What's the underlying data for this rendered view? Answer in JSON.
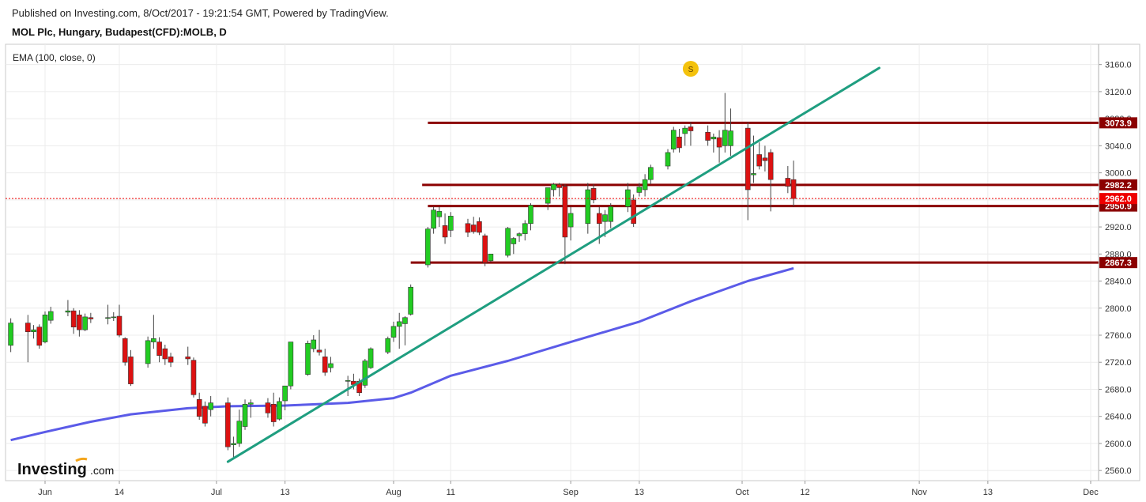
{
  "header": {
    "published": "Published on Investing.com, 8/Oct/2017 - 19:21:54 GMT, Powered by TradingView.",
    "instrument": "MOL Plc, Hungary, Budapest(CFD):MOLB, D"
  },
  "indicator_label": "EMA (100, close, 0)",
  "logo": {
    "main": "Investing",
    "suffix": ".com"
  },
  "event_marker": {
    "label": "S",
    "date": "2017-09-22"
  },
  "colors": {
    "up": "#22cc22",
    "down": "#dd1111",
    "ema": "#5b5be8",
    "trendline": "#1f9e80",
    "level": "#8b0000",
    "price": "#ee0000",
    "grid": "#ececec"
  },
  "chart_data": {
    "type": "candlestick",
    "x_axis": {
      "labels": [
        "Jun",
        "14",
        "Jul",
        "13",
        "Aug",
        "11",
        "Sep",
        "13",
        "Oct",
        "12",
        "Nov",
        "13",
        "Dec"
      ],
      "label_dates": [
        "2017-06-01",
        "2017-06-14",
        "2017-07-01",
        "2017-07-13",
        "2017-08-01",
        "2017-08-11",
        "2017-09-01",
        "2017-09-13",
        "2017-10-01",
        "2017-10-12",
        "2017-11-01",
        "2017-11-13",
        "2017-12-01"
      ]
    },
    "y_axis": {
      "ticks": [
        "3160.0",
        "3120.0",
        "3080.0",
        "3040.0",
        "3000.0",
        "2960.0",
        "2920.0",
        "2880.0",
        "2840.0",
        "2800.0",
        "2760.0",
        "2720.0",
        "2680.0",
        "2640.0",
        "2600.0",
        "2560.0"
      ],
      "range": [
        2545,
        3190
      ]
    },
    "candles": [
      {
        "d": "2017-05-26",
        "o": 2745,
        "h": 2785,
        "l": 2735,
        "c": 2778
      },
      {
        "d": "2017-05-29",
        "o": 2778,
        "h": 2790,
        "l": 2720,
        "c": 2765
      },
      {
        "d": "2017-05-30",
        "o": 2765,
        "h": 2775,
        "l": 2755,
        "c": 2768
      },
      {
        "d": "2017-05-31",
        "o": 2772,
        "h": 2776,
        "l": 2740,
        "c": 2745
      },
      {
        "d": "2017-06-01",
        "o": 2750,
        "h": 2795,
        "l": 2748,
        "c": 2790
      },
      {
        "d": "2017-06-02",
        "o": 2782,
        "h": 2802,
        "l": 2777,
        "c": 2795
      },
      {
        "d": "2017-06-05",
        "o": 2794,
        "h": 2812,
        "l": 2788,
        "c": 2796
      },
      {
        "d": "2017-06-06",
        "o": 2796,
        "h": 2800,
        "l": 2762,
        "c": 2772
      },
      {
        "d": "2017-06-07",
        "o": 2790,
        "h": 2797,
        "l": 2758,
        "c": 2768
      },
      {
        "d": "2017-06-08",
        "o": 2768,
        "h": 2792,
        "l": 2766,
        "c": 2787
      },
      {
        "d": "2017-06-09",
        "o": 2786,
        "h": 2793,
        "l": 2778,
        "c": 2784
      },
      {
        "d": "2017-06-12",
        "o": 2785,
        "h": 2805,
        "l": 2776,
        "c": 2786
      },
      {
        "d": "2017-06-13",
        "o": 2786,
        "h": 2794,
        "l": 2781,
        "c": 2787
      },
      {
        "d": "2017-06-14",
        "o": 2788,
        "h": 2805,
        "l": 2757,
        "c": 2760
      },
      {
        "d": "2017-06-15",
        "o": 2755,
        "h": 2757,
        "l": 2715,
        "c": 2720
      },
      {
        "d": "2017-06-16",
        "o": 2728,
        "h": 2738,
        "l": 2685,
        "c": 2688
      },
      {
        "d": "2017-06-19",
        "o": 2718,
        "h": 2758,
        "l": 2712,
        "c": 2752
      },
      {
        "d": "2017-06-20",
        "o": 2750,
        "h": 2790,
        "l": 2740,
        "c": 2755
      },
      {
        "d": "2017-06-21",
        "o": 2750,
        "h": 2757,
        "l": 2720,
        "c": 2730
      },
      {
        "d": "2017-06-22",
        "o": 2740,
        "h": 2746,
        "l": 2716,
        "c": 2725
      },
      {
        "d": "2017-06-23",
        "o": 2728,
        "h": 2734,
        "l": 2713,
        "c": 2720
      },
      {
        "d": "2017-06-26",
        "o": 2728,
        "h": 2743,
        "l": 2716,
        "c": 2725
      },
      {
        "d": "2017-06-27",
        "o": 2723,
        "h": 2727,
        "l": 2668,
        "c": 2672
      },
      {
        "d": "2017-06-28",
        "o": 2665,
        "h": 2675,
        "l": 2635,
        "c": 2640
      },
      {
        "d": "2017-06-29",
        "o": 2655,
        "h": 2662,
        "l": 2625,
        "c": 2630
      },
      {
        "d": "2017-06-30",
        "o": 2650,
        "h": 2670,
        "l": 2640,
        "c": 2660
      },
      {
        "d": "2017-07-03",
        "o": 2660,
        "h": 2668,
        "l": 2590,
        "c": 2595
      },
      {
        "d": "2017-07-04",
        "o": 2598,
        "h": 2610,
        "l": 2578,
        "c": 2600
      },
      {
        "d": "2017-07-05",
        "o": 2600,
        "h": 2650,
        "l": 2595,
        "c": 2633
      },
      {
        "d": "2017-07-06",
        "o": 2625,
        "h": 2665,
        "l": 2620,
        "c": 2658
      },
      {
        "d": "2017-07-07",
        "o": 2658,
        "h": 2665,
        "l": 2638,
        "c": 2660
      },
      {
        "d": "2017-07-10",
        "o": 2660,
        "h": 2667,
        "l": 2638,
        "c": 2645
      },
      {
        "d": "2017-07-11",
        "o": 2658,
        "h": 2675,
        "l": 2625,
        "c": 2632
      },
      {
        "d": "2017-07-12",
        "o": 2636,
        "h": 2668,
        "l": 2634,
        "c": 2662
      },
      {
        "d": "2017-07-13",
        "o": 2663,
        "h": 2683,
        "l": 2649,
        "c": 2685
      },
      {
        "d": "2017-07-14",
        "o": 2685,
        "h": 2748,
        "l": 2680,
        "c": 2750
      },
      {
        "d": "2017-07-17",
        "o": 2702,
        "h": 2752,
        "l": 2700,
        "c": 2748
      },
      {
        "d": "2017-07-18",
        "o": 2740,
        "h": 2760,
        "l": 2735,
        "c": 2753
      },
      {
        "d": "2017-07-19",
        "o": 2738,
        "h": 2768,
        "l": 2730,
        "c": 2735
      },
      {
        "d": "2017-07-20",
        "o": 2728,
        "h": 2740,
        "l": 2700,
        "c": 2705
      },
      {
        "d": "2017-07-21",
        "o": 2712,
        "h": 2728,
        "l": 2705,
        "c": 2718
      },
      {
        "d": "2017-07-24",
        "o": 2692,
        "h": 2700,
        "l": 2670,
        "c": 2693
      },
      {
        "d": "2017-07-25",
        "o": 2692,
        "h": 2703,
        "l": 2680,
        "c": 2687
      },
      {
        "d": "2017-07-26",
        "o": 2692,
        "h": 2696,
        "l": 2670,
        "c": 2675
      },
      {
        "d": "2017-07-27",
        "o": 2686,
        "h": 2725,
        "l": 2682,
        "c": 2722
      },
      {
        "d": "2017-07-28",
        "o": 2712,
        "h": 2742,
        "l": 2710,
        "c": 2740
      },
      {
        "d": "2017-07-31",
        "o": 2735,
        "h": 2758,
        "l": 2732,
        "c": 2755
      },
      {
        "d": "2017-08-01",
        "o": 2757,
        "h": 2780,
        "l": 2750,
        "c": 2773
      },
      {
        "d": "2017-08-02",
        "o": 2773,
        "h": 2793,
        "l": 2740,
        "c": 2780
      },
      {
        "d": "2017-08-03",
        "o": 2777,
        "h": 2788,
        "l": 2745,
        "c": 2786
      },
      {
        "d": "2017-08-04",
        "o": 2791,
        "h": 2835,
        "l": 2789,
        "c": 2831
      },
      {
        "d": "2017-08-07",
        "o": 2864,
        "h": 2920,
        "l": 2860,
        "c": 2917
      },
      {
        "d": "2017-08-08",
        "o": 2918,
        "h": 2950,
        "l": 2910,
        "c": 2945
      },
      {
        "d": "2017-08-09",
        "o": 2935,
        "h": 2950,
        "l": 2920,
        "c": 2943
      },
      {
        "d": "2017-08-10",
        "o": 2922,
        "h": 2940,
        "l": 2895,
        "c": 2905
      },
      {
        "d": "2017-08-11",
        "o": 2915,
        "h": 2942,
        "l": 2905,
        "c": 2936
      },
      {
        "d": "2017-08-14",
        "o": 2925,
        "h": 2932,
        "l": 2905,
        "c": 2912
      },
      {
        "d": "2017-08-15",
        "o": 2923,
        "h": 2935,
        "l": 2910,
        "c": 2913
      },
      {
        "d": "2017-08-16",
        "o": 2928,
        "h": 2934,
        "l": 2908,
        "c": 2912
      },
      {
        "d": "2017-08-17",
        "o": 2907,
        "h": 2910,
        "l": 2862,
        "c": 2867
      },
      {
        "d": "2017-08-18",
        "o": 2870,
        "h": 2880,
        "l": 2868,
        "c": 2880
      },
      {
        "d": "2017-08-21",
        "o": 2878,
        "h": 2920,
        "l": 2875,
        "c": 2918
      },
      {
        "d": "2017-08-22",
        "o": 2895,
        "h": 2905,
        "l": 2880,
        "c": 2903
      },
      {
        "d": "2017-08-23",
        "o": 2907,
        "h": 2912,
        "l": 2898,
        "c": 2910
      },
      {
        "d": "2017-08-24",
        "o": 2910,
        "h": 2930,
        "l": 2900,
        "c": 2925
      },
      {
        "d": "2017-08-25",
        "o": 2925,
        "h": 2955,
        "l": 2915,
        "c": 2952
      },
      {
        "d": "2017-08-28",
        "o": 2955,
        "h": 2978,
        "l": 2945,
        "c": 2978
      },
      {
        "d": "2017-08-29",
        "o": 2975,
        "h": 2985,
        "l": 2965,
        "c": 2983
      },
      {
        "d": "2017-08-30",
        "o": 2983,
        "h": 2985,
        "l": 2965,
        "c": 2978
      },
      {
        "d": "2017-08-31",
        "o": 2980,
        "h": 2983,
        "l": 2865,
        "c": 2905
      },
      {
        "d": "2017-09-01",
        "o": 2920,
        "h": 2950,
        "l": 2900,
        "c": 2940
      },
      {
        "d": "2017-09-04",
        "o": 2925,
        "h": 2985,
        "l": 2910,
        "c": 2975
      },
      {
        "d": "2017-09-05",
        "o": 2977,
        "h": 2983,
        "l": 2955,
        "c": 2960
      },
      {
        "d": "2017-09-06",
        "o": 2940,
        "h": 2950,
        "l": 2895,
        "c": 2925
      },
      {
        "d": "2017-09-07",
        "o": 2928,
        "h": 2945,
        "l": 2905,
        "c": 2938
      },
      {
        "d": "2017-09-08",
        "o": 2928,
        "h": 2955,
        "l": 2918,
        "c": 2950
      },
      {
        "d": "2017-09-11",
        "o": 2950,
        "h": 2985,
        "l": 2942,
        "c": 2975
      },
      {
        "d": "2017-09-12",
        "o": 2960,
        "h": 2968,
        "l": 2920,
        "c": 2925
      },
      {
        "d": "2017-09-13",
        "o": 2971,
        "h": 2985,
        "l": 2965,
        "c": 2979
      },
      {
        "d": "2017-09-14",
        "o": 2975,
        "h": 2998,
        "l": 2965,
        "c": 2990
      },
      {
        "d": "2017-09-15",
        "o": 2990,
        "h": 3012,
        "l": 2983,
        "c": 3008
      },
      {
        "d": "2017-09-18",
        "o": 3010,
        "h": 3035,
        "l": 3005,
        "c": 3030
      },
      {
        "d": "2017-09-19",
        "o": 3035,
        "h": 3068,
        "l": 3030,
        "c": 3063
      },
      {
        "d": "2017-09-20",
        "o": 3053,
        "h": 3065,
        "l": 3030,
        "c": 3037
      },
      {
        "d": "2017-09-21",
        "o": 3058,
        "h": 3070,
        "l": 3040,
        "c": 3066
      },
      {
        "d": "2017-09-22",
        "o": 3068,
        "h": 3075,
        "l": 3040,
        "c": 3062
      },
      {
        "d": "2017-09-25",
        "o": 3060,
        "h": 3070,
        "l": 3040,
        "c": 3048
      },
      {
        "d": "2017-09-26",
        "o": 3050,
        "h": 3058,
        "l": 3030,
        "c": 3053
      },
      {
        "d": "2017-09-27",
        "o": 3052,
        "h": 3063,
        "l": 3015,
        "c": 3038
      },
      {
        "d": "2017-09-28",
        "o": 3040,
        "h": 3118,
        "l": 3030,
        "c": 3063
      },
      {
        "d": "2017-09-29",
        "o": 3040,
        "h": 3095,
        "l": 3025,
        "c": 3062
      },
      {
        "d": "2017-10-02",
        "o": 3066,
        "h": 3075,
        "l": 2930,
        "c": 2975
      },
      {
        "d": "2017-10-03",
        "o": 2997,
        "h": 3055,
        "l": 2985,
        "c": 2999
      },
      {
        "d": "2017-10-04",
        "o": 3027,
        "h": 3045,
        "l": 3005,
        "c": 3010
      },
      {
        "d": "2017-10-05",
        "o": 3022,
        "h": 3040,
        "l": 3002,
        "c": 3018
      },
      {
        "d": "2017-10-06",
        "o": 3030,
        "h": 3035,
        "l": 2943,
        "c": 2990
      },
      {
        "d": "2017-10-09",
        "o": 2992,
        "h": 3010,
        "l": 2970,
        "c": 2980
      },
      {
        "d": "2017-10-10",
        "o": 2990,
        "h": 3018,
        "l": 2950,
        "c": 2962
      }
    ],
    "ema": {
      "name": "EMA (100, close, 0)",
      "points": [
        {
          "d": "2017-05-26",
          "v": 2605
        },
        {
          "d": "2017-06-01",
          "v": 2617
        },
        {
          "d": "2017-06-09",
          "v": 2632
        },
        {
          "d": "2017-06-16",
          "v": 2643
        },
        {
          "d": "2017-06-26",
          "v": 2652
        },
        {
          "d": "2017-07-03",
          "v": 2655
        },
        {
          "d": "2017-07-13",
          "v": 2656
        },
        {
          "d": "2017-07-24",
          "v": 2660
        },
        {
          "d": "2017-08-01",
          "v": 2667
        },
        {
          "d": "2017-08-04",
          "v": 2675
        },
        {
          "d": "2017-08-11",
          "v": 2700
        },
        {
          "d": "2017-08-21",
          "v": 2722
        },
        {
          "d": "2017-09-01",
          "v": 2750
        },
        {
          "d": "2017-09-13",
          "v": 2780
        },
        {
          "d": "2017-09-22",
          "v": 2810
        },
        {
          "d": "2017-10-02",
          "v": 2840
        },
        {
          "d": "2017-10-10",
          "v": 2859
        }
      ]
    },
    "trendline": {
      "start": {
        "d": "2017-07-03",
        "v": 2573
      },
      "end": {
        "d": "2017-10-25",
        "v": 3155
      }
    },
    "levels": [
      {
        "value": 3073.9,
        "label": "3073.9",
        "from": "2017-08-07"
      },
      {
        "value": 2982.2,
        "label": "2982.2",
        "from": "2017-08-06"
      },
      {
        "value": 2950.9,
        "label": "2950.9",
        "from": "2017-08-07"
      },
      {
        "value": 2867.3,
        "label": "2867.3",
        "from": "2017-08-04"
      }
    ],
    "last_price": {
      "value": 2962.0,
      "label": "2962.0"
    },
    "grid": true
  }
}
